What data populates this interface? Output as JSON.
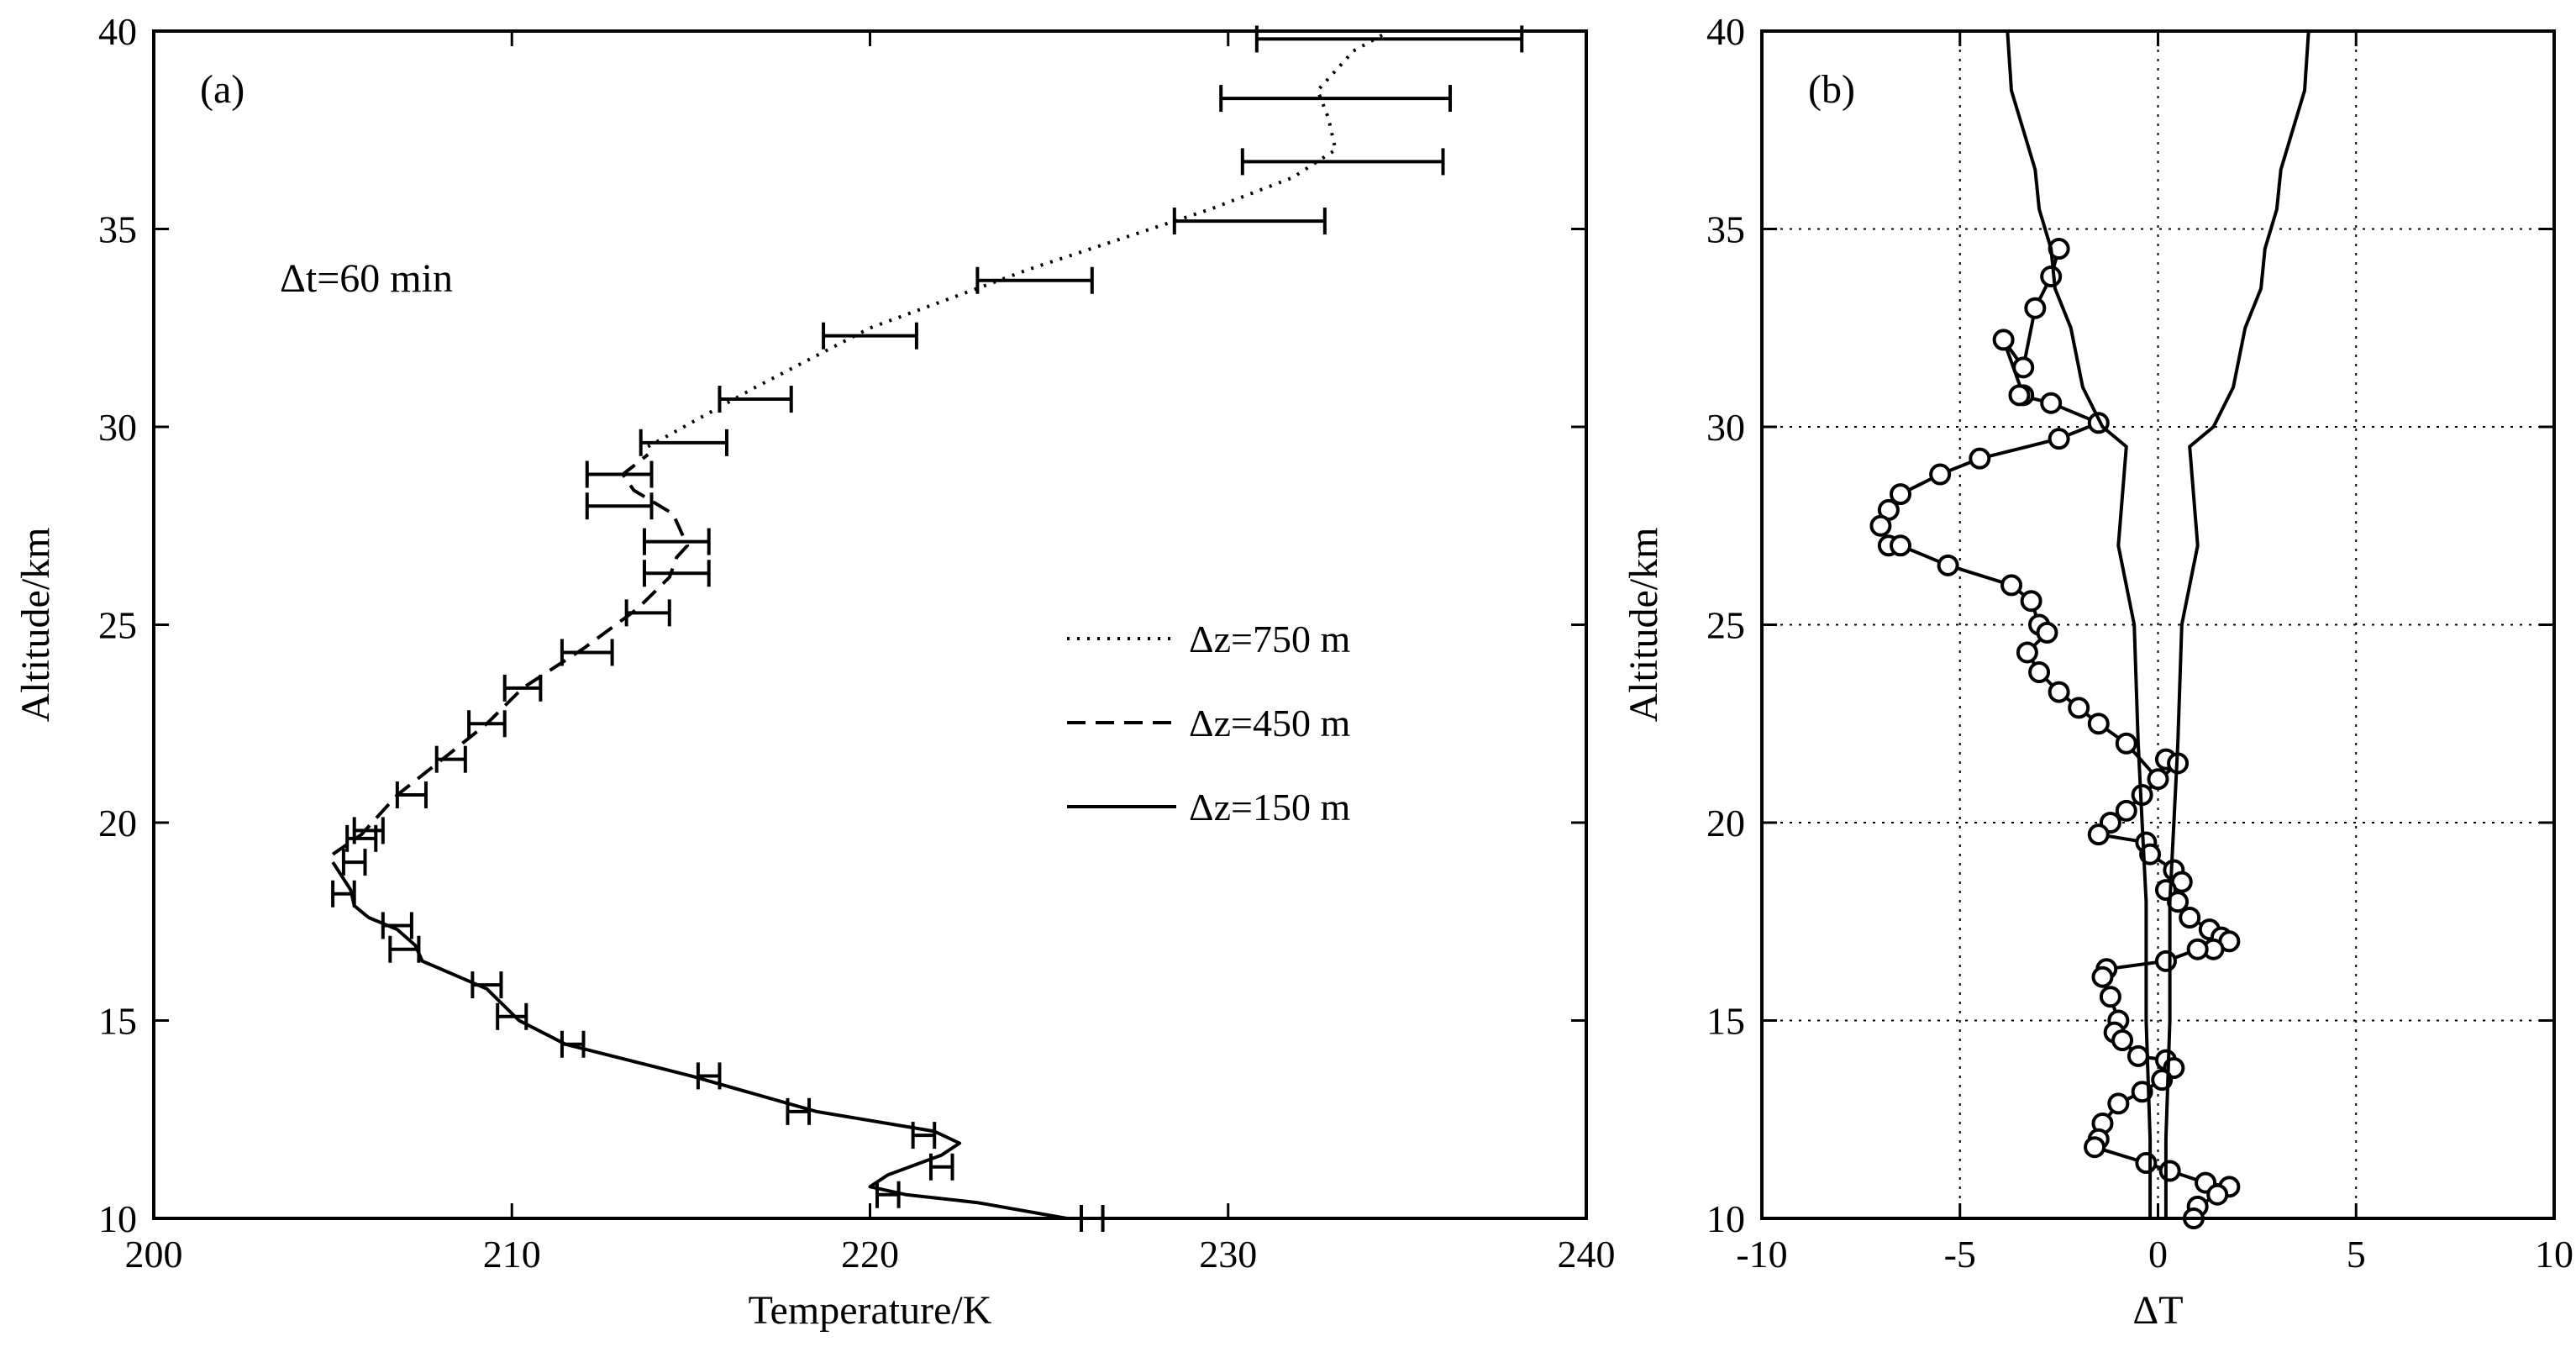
{
  "chart_data": [
    {
      "panel": "(a)",
      "type": "line",
      "title": "",
      "xlabel": "Temperature/K",
      "ylabel": "Altitude/km",
      "xlim": [
        200,
        240
      ],
      "ylim": [
        10,
        40
      ],
      "xticks": [
        "200",
        "210",
        "220",
        "230",
        "240"
      ],
      "yticks": [
        "10",
        "15",
        "20",
        "25",
        "30",
        "35",
        "40"
      ],
      "grid": false,
      "legend_position": "center-right",
      "annotation": "Δt=60 min",
      "series": [
        {
          "name": "Δz=750 m",
          "style": "dotted",
          "x": [
            213.8,
            215.2,
            216.8,
            220.0,
            224.5,
            229.5,
            231.8,
            233.0,
            232.8,
            232.5,
            233.0,
            233.5,
            234.5
          ],
          "y": [
            29.5,
            30.2,
            31.0,
            32.5,
            34.0,
            35.5,
            36.3,
            37.0,
            37.8,
            38.5,
            39.0,
            39.5,
            40.0
          ]
        },
        {
          "name": "Δz=450 m",
          "style": "dashed",
          "x": [
            205.0,
            205.8,
            206.8,
            208.2,
            209.3,
            210.3,
            212.0,
            213.5,
            214.4,
            214.6,
            214.9,
            214.5,
            213.4,
            213.1,
            213.8
          ],
          "y": [
            19.2,
            19.7,
            20.7,
            21.7,
            22.5,
            23.4,
            24.4,
            25.4,
            26.2,
            26.7,
            27.0,
            27.8,
            28.4,
            28.8,
            29.3
          ]
        },
        {
          "name": "Δz=150 m",
          "style": "solid",
          "x": [
            225.5,
            223.0,
            221.0,
            220.0,
            220.5,
            222.0,
            222.5,
            221.8,
            218.5,
            215.0,
            211.5,
            210.2,
            209.3,
            207.5,
            207.3,
            206.8,
            206.0,
            205.6,
            205.5,
            205.0
          ],
          "y": [
            10.0,
            10.4,
            10.6,
            10.8,
            11.1,
            11.6,
            11.9,
            12.2,
            12.7,
            13.6,
            14.4,
            15.0,
            15.8,
            16.5,
            16.9,
            17.3,
            17.6,
            17.9,
            18.3,
            19.0
          ]
        }
      ],
      "errorbars": {
        "x": [
          234.5,
          233.0,
          233.2,
          230.6,
          224.6,
          220.0,
          216.8,
          214.8,
          213.0,
          213.0,
          214.6,
          214.6,
          213.8,
          212.1,
          210.3,
          209.3,
          208.3,
          207.2,
          206.0,
          205.8,
          205.6,
          205.3,
          206.8,
          207.0,
          209.3,
          210.0,
          211.7,
          215.5,
          218.0,
          221.5,
          222.0,
          220.5,
          226.2
        ],
        "y": [
          39.8,
          38.3,
          36.7,
          35.2,
          33.7,
          32.3,
          30.7,
          29.6,
          28.8,
          28.0,
          27.1,
          26.3,
          25.3,
          24.3,
          23.4,
          22.5,
          21.6,
          20.7,
          19.8,
          19.6,
          19.0,
          18.2,
          17.4,
          16.8,
          15.9,
          15.1,
          14.4,
          13.6,
          12.7,
          12.1,
          11.3,
          10.6,
          10.0
        ],
        "half_width": [
          3.7,
          3.2,
          2.8,
          2.1,
          1.6,
          1.3,
          1.0,
          1.2,
          0.9,
          0.9,
          0.9,
          0.9,
          0.6,
          0.7,
          0.5,
          0.5,
          0.4,
          0.4,
          0.4,
          0.4,
          0.3,
          0.3,
          0.4,
          0.4,
          0.4,
          0.4,
          0.3,
          0.3,
          0.3,
          0.3,
          0.3,
          0.3,
          0.3
        ]
      }
    },
    {
      "panel": "(b)",
      "type": "line",
      "title": "",
      "xlabel": "ΔT",
      "ylabel": "Altitude/km",
      "xlim": [
        -10,
        10
      ],
      "ylim": [
        10,
        40
      ],
      "xticks": [
        "-10",
        "-5",
        "0",
        "5",
        "10"
      ],
      "yticks": [
        "10",
        "15",
        "20",
        "25",
        "30",
        "35",
        "40"
      ],
      "grid": true,
      "series": [
        {
          "style": "solid-circles",
          "x": [
            -2.5,
            -2.7,
            -3.1,
            -3.4,
            -3.9,
            -3.4,
            -3.5,
            -2.7,
            -1.5,
            -2.5,
            -4.5,
            -5.5,
            -6.5,
            -6.8,
            -7.0,
            -6.8,
            -6.5,
            -5.3,
            -3.7,
            -3.2,
            -3.0,
            -2.8,
            -3.3,
            -3.0,
            -2.5,
            -2.0,
            -1.5,
            -0.8,
            0.0,
            0.2,
            0.5,
            -0.4,
            -0.8,
            -1.2,
            -1.5,
            -0.3,
            -0.2,
            0.4,
            0.6,
            0.2,
            0.5,
            0.8,
            1.3,
            1.6,
            1.8,
            1.4,
            1.0,
            0.2,
            -1.3,
            -1.4,
            -1.2,
            -1.0,
            -1.1,
            -0.9,
            -0.5,
            0.2,
            0.4,
            0.1,
            -0.4,
            -1.0,
            -1.4,
            -1.5,
            -1.6,
            -0.3,
            0.3,
            1.2,
            1.8,
            1.5,
            1.0,
            0.9
          ],
          "y": [
            34.5,
            33.8,
            33.0,
            31.5,
            32.2,
            30.8,
            30.8,
            30.6,
            30.1,
            29.7,
            29.2,
            28.8,
            28.3,
            27.9,
            27.5,
            27.0,
            27.0,
            26.5,
            26.0,
            25.6,
            25.0,
            24.8,
            24.3,
            23.8,
            23.3,
            22.9,
            22.5,
            22.0,
            21.1,
            21.6,
            21.5,
            20.7,
            20.3,
            20.0,
            19.7,
            19.5,
            19.2,
            18.8,
            18.5,
            18.3,
            18.0,
            17.6,
            17.3,
            17.1,
            17.0,
            16.8,
            16.8,
            16.5,
            16.3,
            16.1,
            15.6,
            15.0,
            14.7,
            14.5,
            14.1,
            14.0,
            13.8,
            13.5,
            13.2,
            12.9,
            12.4,
            12.0,
            11.8,
            11.4,
            11.2,
            10.9,
            10.8,
            10.6,
            10.3,
            10.0
          ]
        },
        {
          "style": "solid",
          "x": [
            -3.8,
            -3.7,
            -3.4,
            -3.1,
            -3.0,
            -2.7,
            -2.6,
            -2.2,
            -1.9,
            -1.4,
            -0.8,
            -1.0,
            -0.6,
            -0.5,
            -0.4,
            -0.3,
            -0.3,
            -0.2,
            -0.2
          ],
          "y": [
            40.0,
            38.5,
            37.5,
            36.5,
            35.5,
            34.5,
            33.5,
            32.5,
            31.0,
            30.0,
            29.5,
            27.0,
            25.0,
            22.0,
            20.0,
            18.0,
            15.0,
            12.0,
            10.0
          ]
        },
        {
          "style": "solid",
          "x": [
            3.8,
            3.7,
            3.4,
            3.1,
            3.0,
            2.7,
            2.6,
            2.2,
            1.9,
            1.4,
            0.8,
            1.0,
            0.6,
            0.5,
            0.4,
            0.3,
            0.3,
            0.2,
            0.2
          ],
          "y": [
            40.0,
            38.5,
            37.5,
            36.5,
            35.5,
            34.5,
            33.5,
            32.5,
            31.0,
            30.0,
            29.5,
            27.0,
            25.0,
            22.0,
            20.0,
            18.0,
            15.0,
            12.0,
            10.0
          ]
        }
      ]
    }
  ]
}
